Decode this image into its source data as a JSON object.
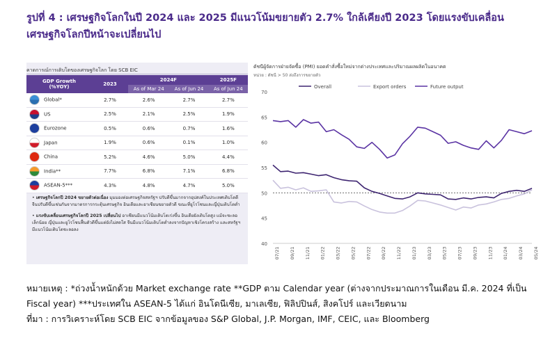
{
  "figure_title": "รูปที่ 4 : เศรษฐกิจโลกในปี 2024 และ 2025 มีแนวโน้มขยายตัว 2.7% ใกล้เคียงปี 2023 โดยแรงขับเคลื่อนเศรษฐกิจโลกปีหน้าจะเปลี่ยนไป",
  "table": {
    "heading": "คาดการณ์การเติบโตของเศรษฐกิจโลก โดย SCB EIC",
    "col_growth": "GDP Growth",
    "col_growth_sub": "(%YOY)",
    "col_2023": "2023",
    "col_2024f": "2024F",
    "col_2025f": "2025F",
    "sub_mar": "As of Mar 24",
    "sub_jun": "As of Jun 24",
    "sub_jun2": "As of Jun 24",
    "rows": [
      {
        "name": "Global*",
        "y2023": "2.7%",
        "mar24": "2.6%",
        "jun24": "2.7%",
        "y2025": "2.7%",
        "flag": "globe-icon",
        "c1": "#3b8fd6",
        "c2": "#2a6fb0"
      },
      {
        "name": "US",
        "y2023": "2.5%",
        "mar24": "2.1%",
        "jun24": "2.5%",
        "y2025": "1.9%",
        "flag": "us-flag-icon",
        "c1": "#c8102e",
        "c2": "#1e3f8a"
      },
      {
        "name": "Eurozone",
        "y2023": "0.5%",
        "mar24": "0.6%",
        "jun24": "0.7%",
        "y2025": "1.6%",
        "flag": "eu-flag-icon",
        "c1": "#1d3f9e",
        "c2": "#1d3f9e"
      },
      {
        "name": "Japan",
        "y2023": "1.9%",
        "mar24": "0.6%",
        "jun24": "0.1%",
        "y2025": "1.0%",
        "flag": "japan-flag-icon",
        "c1": "#ffffff",
        "c2": "#d01c2a"
      },
      {
        "name": "China",
        "y2023": "5.2%",
        "mar24": "4.6%",
        "jun24": "5.0%",
        "y2025": "4.4%",
        "flag": "china-flag-icon",
        "c1": "#de2910",
        "c2": "#de2910"
      },
      {
        "name": "India**",
        "y2023": "7.7%",
        "mar24": "6.8%",
        "jun24": "7.1%",
        "y2025": "6.8%",
        "flag": "india-flag-icon",
        "c1": "#f59a2a",
        "c2": "#2d8a3a"
      },
      {
        "name": "ASEAN-5***",
        "y2023": "4.3%",
        "mar24": "4.8%",
        "jun24": "4.7%",
        "y2025": "5.0%",
        "flag": "asean-flag-icon",
        "c1": "#1d3f9e",
        "c2": "#d01c2a"
      }
    ],
    "note1_bold": "เศรษฐกิจโลกปี 2024 ขยายตัวต่อเนื่อง",
    "note1_text": " มุมมองต่อเศรษฐกิจสหรัฐฯ ปรับดีขึ้นมากจากอุปสงค์ในประเทศเติบโตดี จีนปรับดีขึ้นเช่นกันจากมาตรการกระตุ้นเศรษฐกิจ อินเดียและอาเซียนขยายตัวดี ขณะที่ยูโรโซนและญี่ปุ่นเติบโตต่ำ",
    "note2_bold": "แรงขับเคลื่อนเศรษฐกิจโลกปี 2025 เปลี่ยนไป",
    "note2_text": " อาเซียนมีแนวโน้มเติบโตเร่งขึ้น อินเดียยังเติบโตสูง แม้จะชะลอเล็กน้อย ญี่ปุ่นและยูโรโซนฟื้นตัวดีขึ้นแต่ยังไม่สดใส จีนมีแนวโน้มเติบโตต่ำลงจากปัญหาเชิงโครงสร้าง และสหรัฐฯ มีแนวโน้มเติบโตชะลอลง"
  },
  "chart_data": {
    "type": "line",
    "title": "ดัชนีผู้จัดการฝ่ายจัดซื้อ (PMI) ยอดคำสั่งซื้อใหม่จากต่างประเทศและปริมาณผลผลิตในอนาคต",
    "unit": "หน่วย : ดัชนี > 50 ส่งถึงการขยายตัว",
    "ylim": [
      40,
      70
    ],
    "yticks": [
      40,
      45,
      50,
      55,
      60,
      65,
      70
    ],
    "reference_line": 50,
    "x_tick_labels": [
      "07/21",
      "09/21",
      "11/21",
      "01/22",
      "03/22",
      "05/22",
      "07/22",
      "09/22",
      "11/22",
      "01/23",
      "03/23",
      "05/23",
      "07/23",
      "09/23",
      "11/23",
      "01/24",
      "03/24",
      "05/24"
    ],
    "x": [
      "07/21",
      "08/21",
      "09/21",
      "10/21",
      "11/21",
      "12/21",
      "01/22",
      "02/22",
      "03/22",
      "04/22",
      "05/22",
      "06/22",
      "07/22",
      "08/22",
      "09/22",
      "10/22",
      "11/22",
      "12/22",
      "01/23",
      "02/23",
      "03/23",
      "04/23",
      "05/23",
      "06/23",
      "07/23",
      "08/23",
      "09/23",
      "10/23",
      "11/23",
      "12/23",
      "01/24",
      "02/24",
      "03/24",
      "04/24",
      "05/24"
    ],
    "series": [
      {
        "name": "Overall",
        "color": "#3d2470",
        "values": [
          55.5,
          54.2,
          54.3,
          53.9,
          54.0,
          53.7,
          53.4,
          53.6,
          53.0,
          52.6,
          52.4,
          52.3,
          51.0,
          50.3,
          49.9,
          49.4,
          48.9,
          48.8,
          49.2,
          50.0,
          49.8,
          49.7,
          49.6,
          48.8,
          48.7,
          49.0,
          48.8,
          49.1,
          49.2,
          49.0,
          49.9,
          50.3,
          50.5,
          50.3,
          50.9
        ]
      },
      {
        "name": "Export orders",
        "color": "#c9c2dd",
        "values": [
          52.5,
          50.9,
          51.1,
          50.6,
          51.0,
          50.3,
          50.4,
          50.6,
          48.2,
          48.0,
          48.3,
          48.2,
          47.4,
          46.7,
          46.2,
          46.0,
          46.0,
          46.5,
          47.4,
          48.5,
          48.4,
          48.0,
          47.6,
          47.1,
          46.6,
          47.2,
          47.0,
          47.6,
          47.8,
          48.2,
          48.7,
          48.9,
          49.4,
          49.8,
          50.6
        ]
      },
      {
        "name": "Future output",
        "color": "#5a33a3",
        "values": [
          64.3,
          64.1,
          64.3,
          63.0,
          64.5,
          63.8,
          64.0,
          62.1,
          62.5,
          61.5,
          60.6,
          59.1,
          58.8,
          60.0,
          58.6,
          56.9,
          57.5,
          59.7,
          61.2,
          63.0,
          62.8,
          62.1,
          61.4,
          59.8,
          60.1,
          59.4,
          58.9,
          58.6,
          60.3,
          58.9,
          60.4,
          62.5,
          62.1,
          61.7,
          62.3
        ]
      }
    ]
  },
  "footnote1": "หมายเหตุ : *ถ่วงน้ำหนักด้วย Market exchange rate **GDP ตาม Calendar year (ต่างจากประมาณการในเดือน มี.ค. 2024 ที่เป็น Fiscal year) ***ประเทศใน ASEAN-5 ได้แก่ อินโดนีเซีย, มาเลเซีย, ฟิลิปปินส์, สิงคโปร์ และเวียดนาม",
  "footnote2": "ที่มา : การวิเคราะห์โดย SCB EIC จากข้อมูลของ S&P Global, J.P. Morgan, IMF, CEIC, และ Bloomberg"
}
